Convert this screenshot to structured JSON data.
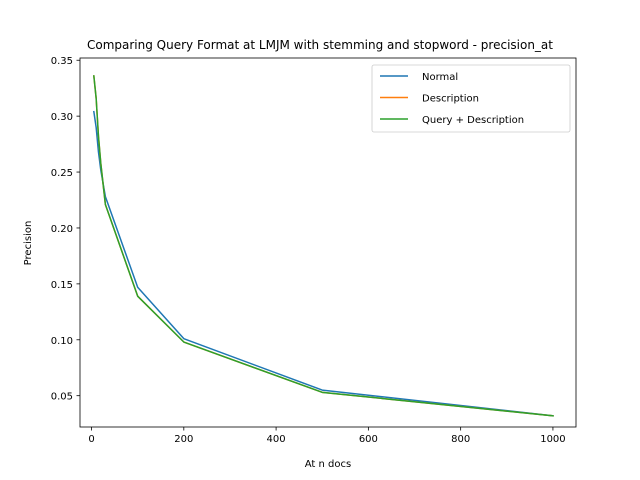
{
  "chart_data": {
    "type": "line",
    "title": "Comparing Query Format at LMJM with stemming and stopword - precision_at",
    "xlabel": "At n docs",
    "ylabel": "Precision",
    "xlim": [
      -25,
      1050
    ],
    "ylim": [
      0.022,
      0.352
    ],
    "xticks": [
      0,
      200,
      400,
      600,
      800,
      1000
    ],
    "xtick_labels": [
      "0",
      "200",
      "400",
      "600",
      "800",
      "1000"
    ],
    "yticks": [
      0.05,
      0.1,
      0.15,
      0.2,
      0.25,
      0.3,
      0.35
    ],
    "ytick_labels": [
      "0.05",
      "0.10",
      "0.15",
      "0.20",
      "0.25",
      "0.30",
      "0.35"
    ],
    "grid": false,
    "legend_position": "top-right",
    "series": [
      {
        "name": "Normal",
        "color": "#1f77b4",
        "x": [
          5,
          10,
          15,
          20,
          30,
          100,
          200,
          500,
          1000
        ],
        "y": [
          0.304,
          0.29,
          0.268,
          0.252,
          0.228,
          0.147,
          0.101,
          0.055,
          0.032
        ]
      },
      {
        "name": "Description",
        "color": "#ff7f0e",
        "x": [
          5,
          10,
          15,
          20,
          30,
          100,
          200,
          500,
          1000
        ],
        "y": [
          0.336,
          0.316,
          0.282,
          0.258,
          0.221,
          0.139,
          0.098,
          0.053,
          0.032
        ]
      },
      {
        "name": "Query + Description",
        "color": "#2ca02c",
        "x": [
          5,
          10,
          15,
          20,
          30,
          100,
          200,
          500,
          1000
        ],
        "y": [
          0.336,
          0.316,
          0.282,
          0.258,
          0.221,
          0.139,
          0.098,
          0.053,
          0.032
        ]
      }
    ]
  }
}
